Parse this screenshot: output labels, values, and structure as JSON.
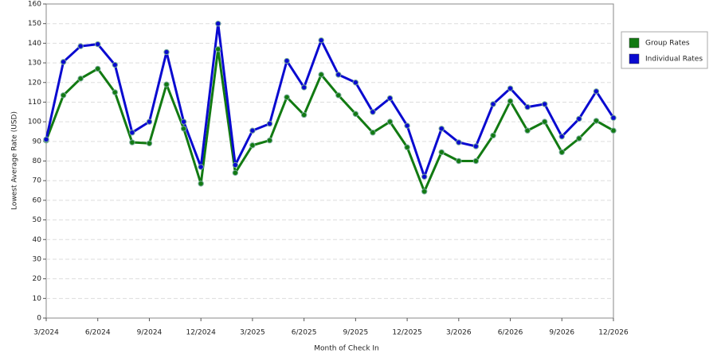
{
  "chart_data": {
    "type": "line",
    "x_label": "Month of Check In",
    "y_label": "Lowest Average Rate (USD)",
    "categories": [
      "3/2024",
      null,
      null,
      "6/2024",
      null,
      null,
      "9/2024",
      null,
      null,
      "12/2024",
      null,
      null,
      "3/2025",
      null,
      null,
      "6/2025",
      null,
      null,
      "9/2025",
      null,
      null,
      "12/2025",
      null,
      null,
      "3/2026",
      null,
      null,
      "6/2026",
      null,
      null,
      "9/2026",
      null,
      null,
      "12/2026"
    ],
    "series": [
      {
        "name": "Group Rates",
        "color": "#127a12",
        "values": [
          90.5,
          113.5,
          122,
          127,
          115,
          89.5,
          89,
          119,
          96.5,
          68.5,
          137,
          74,
          88,
          90.5,
          112.5,
          103.5,
          124,
          113.5,
          104,
          94.5,
          100,
          87,
          64.5,
          84.5,
          80,
          80,
          93,
          110.5,
          95.5,
          100,
          84.5,
          91.5,
          100.5,
          95.5
        ]
      },
      {
        "name": "Individual Rates",
        "color": "#0a0ad0",
        "values": [
          91,
          130.5,
          138.5,
          139.5,
          129,
          94.5,
          100,
          135.5,
          100,
          77,
          150,
          78,
          95.5,
          99,
          131,
          117.5,
          141.5,
          124,
          120,
          105,
          112,
          98,
          72,
          96.5,
          89.5,
          87.5,
          109,
          117,
          107.5,
          109,
          92.5,
          101.5,
          115.5,
          102
        ]
      }
    ],
    "ylim": [
      0,
      160
    ],
    "yticks": [
      0,
      10,
      20,
      30,
      40,
      50,
      60,
      70,
      80,
      90,
      100,
      110,
      120,
      130,
      140,
      150,
      160
    ],
    "grid": true,
    "legend": "right"
  }
}
